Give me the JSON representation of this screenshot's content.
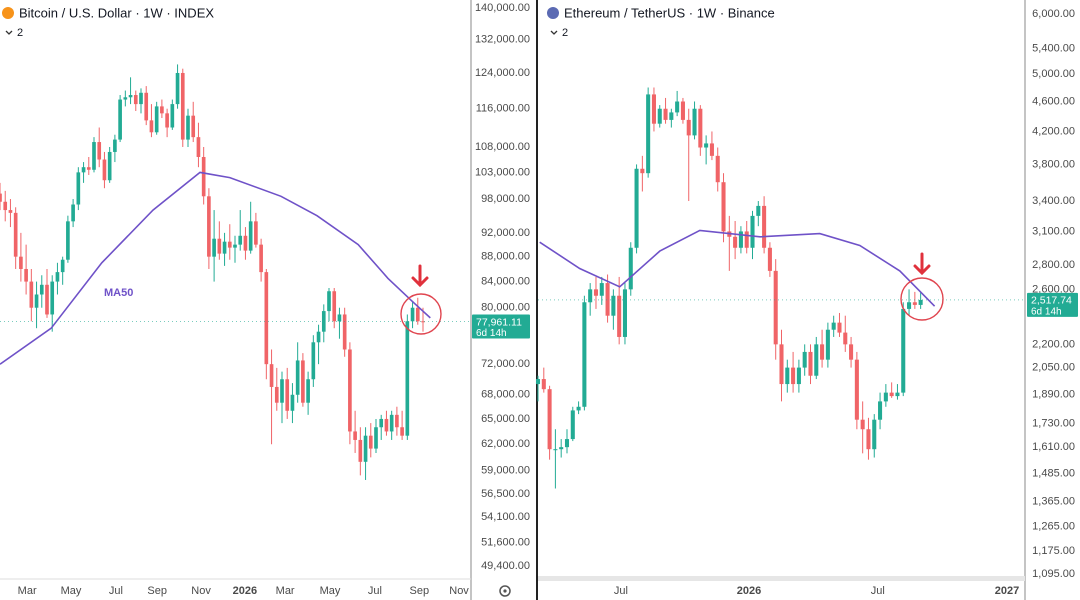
{
  "chart_data": [
    {
      "type": "candlestick",
      "title": "Bitcoin / U.S. Dollar · 1W · INDEX",
      "legend_count": 2,
      "log": true,
      "ylim": [
        48300,
        142100
      ],
      "yticks": [
        {
          "value": 140000,
          "label": "140,000.00"
        },
        {
          "value": 132000,
          "label": "132,000.00"
        },
        {
          "value": 124000,
          "label": "124,000.00"
        },
        {
          "value": 116000,
          "label": "116,000.00"
        },
        {
          "value": 108000,
          "label": "108,000.00"
        },
        {
          "value": 103000,
          "label": "103,000.00"
        },
        {
          "value": 98000,
          "label": "98,000.00"
        },
        {
          "value": 92000,
          "label": "92,000.00"
        },
        {
          "value": 88000,
          "label": "88,000.00"
        },
        {
          "value": 84000,
          "label": "84,000.00"
        },
        {
          "value": 80000,
          "label": "80,000.00"
        },
        {
          "value": 72000,
          "label": "72,000.00"
        },
        {
          "value": 68000,
          "label": "68,000.00"
        },
        {
          "value": 65000,
          "label": "65,000.00"
        },
        {
          "value": 62000,
          "label": "62,000.00"
        },
        {
          "value": 59000,
          "label": "59,000.00"
        },
        {
          "value": 56500,
          "label": "56,500.00"
        },
        {
          "value": 54100,
          "label": "54,100.00"
        },
        {
          "value": 51600,
          "label": "51,600.00"
        },
        {
          "value": 49400,
          "label": "49,400.00"
        }
      ],
      "xlim": [
        0,
        90
      ],
      "xticks": [
        {
          "value": 5.2,
          "label": "Mar"
        },
        {
          "value": 13.6,
          "label": "May"
        },
        {
          "value": 22.2,
          "label": "Jul"
        },
        {
          "value": 30.1,
          "label": "Sep"
        },
        {
          "value": 38.5,
          "label": "Nov"
        },
        {
          "value": 46.9,
          "label": "2026"
        },
        {
          "value": 54.6,
          "label": "Mar"
        },
        {
          "value": 63.2,
          "label": "May"
        },
        {
          "value": 71.8,
          "label": "Jul"
        },
        {
          "value": 80.3,
          "label": "Sep"
        },
        {
          "value": 87.9,
          "label": "Nov"
        }
      ],
      "up_color": "#22ab94",
      "down_color": "#f06467",
      "ohlc": [
        [
          99000,
          101000,
          96000,
          97500
        ],
        [
          97500,
          99500,
          94000,
          96000
        ],
        [
          96000,
          98000,
          93000,
          95500
        ],
        [
          95500,
          96500,
          86000,
          88000
        ],
        [
          88000,
          92000,
          84000,
          86000
        ],
        [
          86000,
          90000,
          82000,
          84000
        ],
        [
          84000,
          86000,
          78000,
          80000
        ],
        [
          80000,
          84000,
          77000,
          82000
        ],
        [
          82000,
          85000,
          80000,
          83500
        ],
        [
          83500,
          86000,
          78500,
          79000
        ],
        [
          79000,
          85000,
          76500,
          84000
        ],
        [
          84000,
          87000,
          82000,
          85500
        ],
        [
          85500,
          88000,
          83500,
          87500
        ],
        [
          87500,
          95000,
          87000,
          94000
        ],
        [
          94000,
          98000,
          93000,
          97000
        ],
        [
          97000,
          104000,
          96000,
          103000
        ],
        [
          103000,
          105000,
          101000,
          104000
        ],
        [
          104000,
          106000,
          102500,
          103500
        ],
        [
          103500,
          110000,
          103000,
          109000
        ],
        [
          109000,
          112000,
          104000,
          105500
        ],
        [
          105500,
          107000,
          100000,
          101500
        ],
        [
          101500,
          108000,
          101000,
          107000
        ],
        [
          107000,
          110500,
          105000,
          109500
        ],
        [
          109500,
          119000,
          109000,
          118000
        ],
        [
          118000,
          120000,
          116500,
          118500
        ],
        [
          118500,
          123000,
          117000,
          119000
        ],
        [
          119000,
          120000,
          115500,
          117000
        ],
        [
          117000,
          120500,
          115000,
          119500
        ],
        [
          119500,
          121000,
          112500,
          113500
        ],
        [
          113500,
          117000,
          110000,
          111000
        ],
        [
          111000,
          117500,
          110500,
          116500
        ],
        [
          116500,
          118000,
          114000,
          115000
        ],
        [
          115000,
          116000,
          110000,
          112000
        ],
        [
          112000,
          118000,
          111500,
          117000
        ],
        [
          117000,
          126000,
          116000,
          124000
        ],
        [
          124000,
          125000,
          108000,
          109500
        ],
        [
          109500,
          116000,
          108000,
          114500
        ],
        [
          114500,
          117500,
          109000,
          110000
        ],
        [
          110000,
          113000,
          104000,
          106000
        ],
        [
          106000,
          108000,
          97000,
          98500
        ],
        [
          98500,
          100000,
          86000,
          88000
        ],
        [
          88000,
          96000,
          84000,
          91000
        ],
        [
          91000,
          94000,
          87500,
          88500
        ],
        [
          88500,
          92000,
          86500,
          90500
        ],
        [
          90500,
          93500,
          87500,
          89500
        ],
        [
          89500,
          91500,
          87000,
          90000
        ],
        [
          90000,
          96000,
          89000,
          91500
        ],
        [
          91500,
          93000,
          87500,
          89000
        ],
        [
          89000,
          97500,
          88500,
          94000
        ],
        [
          94000,
          95500,
          89500,
          90000
        ],
        [
          90000,
          91000,
          84000,
          85500
        ],
        [
          85500,
          86000,
          70000,
          72000
        ],
        [
          72000,
          74000,
          62000,
          69000
        ],
        [
          69000,
          71500,
          66000,
          67000
        ],
        [
          67000,
          71000,
          64500,
          70000
        ],
        [
          70000,
          71500,
          65000,
          66000
        ],
        [
          66000,
          69500,
          64500,
          68000
        ],
        [
          68000,
          75000,
          67000,
          72500
        ],
        [
          72500,
          73500,
          66500,
          67000
        ],
        [
          67000,
          71000,
          65500,
          70000
        ],
        [
          70000,
          76000,
          69000,
          75000
        ],
        [
          75000,
          77500,
          72000,
          76500
        ],
        [
          76500,
          80500,
          75000,
          79500
        ],
        [
          79500,
          83000,
          78000,
          82500
        ],
        [
          82500,
          83000,
          77000,
          78000
        ],
        [
          78000,
          80000,
          75500,
          79000
        ],
        [
          79000,
          80000,
          73000,
          74000
        ],
        [
          74000,
          75000,
          62000,
          63500
        ],
        [
          63500,
          66000,
          61000,
          62500
        ],
        [
          62500,
          64000,
          58500,
          60000
        ],
        [
          60000,
          64000,
          58000,
          63000
        ],
        [
          63000,
          64500,
          60500,
          61500
        ],
        [
          61500,
          65000,
          61000,
          64000
        ],
        [
          64000,
          65500,
          62500,
          65000
        ],
        [
          65000,
          66000,
          63000,
          63500
        ],
        [
          63500,
          66000,
          62500,
          65500
        ],
        [
          65500,
          66500,
          63000,
          64000
        ],
        [
          64000,
          66000,
          62500,
          63000
        ],
        [
          63000,
          79000,
          62500,
          78000
        ],
        [
          78000,
          81000,
          77000,
          80000
        ],
        [
          80000,
          81500,
          77500,
          78000
        ],
        [
          78000,
          80000,
          76500,
          77961.11
        ]
      ],
      "ma": {
        "name": "MA50",
        "color": "#6f52c8",
        "x": [
          0,
          9.8,
          19.5,
          29.3,
          38.3,
          44,
          53.8,
          60.7,
          68.6,
          74.3,
          79.3,
          82.4
        ],
        "values": [
          72000,
          77000,
          87000,
          96000,
          103000,
          102000,
          98500,
          95000,
          90000,
          84500,
          80700,
          78500
        ]
      },
      "last_price": {
        "value": 77961.11,
        "label": "77,961.11",
        "countdown": "6d 14h",
        "color": "#22ab94"
      }
    },
    {
      "type": "candlestick",
      "title": "Ethereum / TetherUS · 1W · Binance",
      "legend_count": 2,
      "log": true,
      "ylim": [
        1082,
        6261
      ],
      "yticks": [
        {
          "value": 6000,
          "label": "6,000.00"
        },
        {
          "value": 5400,
          "label": "5,400.00"
        },
        {
          "value": 5000,
          "label": "5,000.00"
        },
        {
          "value": 4600,
          "label": "4,600.00"
        },
        {
          "value": 4200,
          "label": "4,200.00"
        },
        {
          "value": 3800,
          "label": "3,800.00"
        },
        {
          "value": 3400,
          "label": "3,400.00"
        },
        {
          "value": 3100,
          "label": "3,100.00"
        },
        {
          "value": 2800,
          "label": "2,800.00"
        },
        {
          "value": 2600,
          "label": "2,600.00"
        },
        {
          "value": 2200,
          "label": "2,200.00"
        },
        {
          "value": 2050,
          "label": "2,050.00"
        },
        {
          "value": 1890,
          "label": "1,890.00"
        },
        {
          "value": 1730,
          "label": "1,730.00"
        },
        {
          "value": 1610,
          "label": "1,610.00"
        },
        {
          "value": 1485,
          "label": "1,485.00"
        },
        {
          "value": 1365,
          "label": "1,365.00"
        },
        {
          "value": 1265,
          "label": "1,265.00"
        },
        {
          "value": 1175,
          "label": "1,175.00"
        },
        {
          "value": 1095,
          "label": "1,095.00"
        }
      ],
      "xlim": [
        0,
        84
      ],
      "xticks": [
        {
          "value": 14.3,
          "label": "Jul"
        },
        {
          "value": 36.4,
          "label": "2026"
        },
        {
          "value": 58.6,
          "label": "Jul"
        },
        {
          "value": 80.9,
          "label": "2027"
        }
      ],
      "up_color": "#22ab94",
      "down_color": "#f06467",
      "ohlc": [
        [
          1950,
          2000,
          1850,
          1980
        ],
        [
          1980,
          2050,
          1900,
          1920
        ],
        [
          1920,
          1940,
          1550,
          1600
        ],
        [
          1600,
          1700,
          1420,
          1600
        ],
        [
          1600,
          1650,
          1560,
          1610
        ],
        [
          1610,
          1700,
          1580,
          1650
        ],
        [
          1650,
          1820,
          1640,
          1800
        ],
        [
          1800,
          1850,
          1780,
          1820
        ],
        [
          1820,
          2550,
          1800,
          2500
        ],
        [
          2500,
          2650,
          2400,
          2600
        ],
        [
          2600,
          2700,
          2450,
          2550
        ],
        [
          2550,
          2700,
          2480,
          2650
        ],
        [
          2650,
          2720,
          2350,
          2400
        ],
        [
          2400,
          2600,
          2300,
          2550
        ],
        [
          2550,
          2700,
          2200,
          2250
        ],
        [
          2250,
          2650,
          2200,
          2600
        ],
        [
          2600,
          3000,
          2550,
          2950
        ],
        [
          2950,
          3800,
          2900,
          3750
        ],
        [
          3750,
          3900,
          3500,
          3700
        ],
        [
          3700,
          4800,
          3650,
          4700
        ],
        [
          4700,
          4800,
          4200,
          4300
        ],
        [
          4300,
          4550,
          4250,
          4500
        ],
        [
          4500,
          4650,
          4300,
          4350
        ],
        [
          4350,
          4500,
          4250,
          4450
        ],
        [
          4450,
          4750,
          4400,
          4600
        ],
        [
          4600,
          4650,
          4300,
          4350
        ],
        [
          4350,
          4500,
          3400,
          4150
        ],
        [
          4150,
          4600,
          4100,
          4500
        ],
        [
          4500,
          4550,
          3900,
          4000
        ],
        [
          4000,
          4150,
          3800,
          4050
        ],
        [
          4050,
          4200,
          3850,
          3900
        ],
        [
          3900,
          4000,
          3500,
          3600
        ],
        [
          3600,
          3700,
          3000,
          3100
        ],
        [
          3100,
          3250,
          2750,
          3050
        ],
        [
          3050,
          3200,
          2850,
          2950
        ],
        [
          2950,
          3150,
          2900,
          3100
        ],
        [
          3100,
          3200,
          2900,
          2950
        ],
        [
          2950,
          3300,
          2850,
          3250
        ],
        [
          3250,
          3400,
          3150,
          3350
        ],
        [
          3350,
          3450,
          2900,
          2950
        ],
        [
          2950,
          3000,
          2700,
          2750
        ],
        [
          2750,
          2850,
          2100,
          2200
        ],
        [
          2200,
          2300,
          1850,
          1950
        ],
        [
          1950,
          2100,
          1900,
          2050
        ],
        [
          2050,
          2150,
          1900,
          1950
        ],
        [
          1950,
          2100,
          1900,
          2050
        ],
        [
          2050,
          2200,
          2000,
          2150
        ],
        [
          2150,
          2200,
          1950,
          2000
        ],
        [
          2000,
          2250,
          1980,
          2200
        ],
        [
          2200,
          2300,
          2050,
          2100
        ],
        [
          2100,
          2350,
          2050,
          2300
        ],
        [
          2300,
          2400,
          2250,
          2350
        ],
        [
          2350,
          2420,
          2250,
          2280
        ],
        [
          2280,
          2400,
          2150,
          2200
        ],
        [
          2200,
          2250,
          2050,
          2100
        ],
        [
          2100,
          2150,
          1700,
          1750
        ],
        [
          1750,
          1850,
          1580,
          1700
        ],
        [
          1700,
          1760,
          1550,
          1600
        ],
        [
          1600,
          1780,
          1560,
          1750
        ],
        [
          1750,
          1900,
          1700,
          1850
        ],
        [
          1850,
          1950,
          1820,
          1900
        ],
        [
          1900,
          1960,
          1870,
          1880
        ],
        [
          1880,
          1950,
          1860,
          1900
        ],
        [
          1900,
          2500,
          1880,
          2450
        ],
        [
          2450,
          2600,
          2400,
          2500
        ],
        [
          2500,
          2580,
          2450,
          2480
        ],
        [
          2480,
          2580,
          2450,
          2517.74
        ]
      ],
      "ma": {
        "color": "#6f52c8",
        "x": [
          0.3,
          7.2,
          14.1,
          21,
          27.9,
          38.3,
          48.6,
          55.5,
          62.4,
          68.4
        ],
        "values": [
          3000,
          2770,
          2620,
          2920,
          3110,
          3050,
          3080,
          2970,
          2750,
          2470
        ]
      },
      "last_price": {
        "value": 2517.74,
        "label": "2,517.74",
        "countdown": "6d 14h",
        "color": "#22ab94"
      }
    }
  ]
}
